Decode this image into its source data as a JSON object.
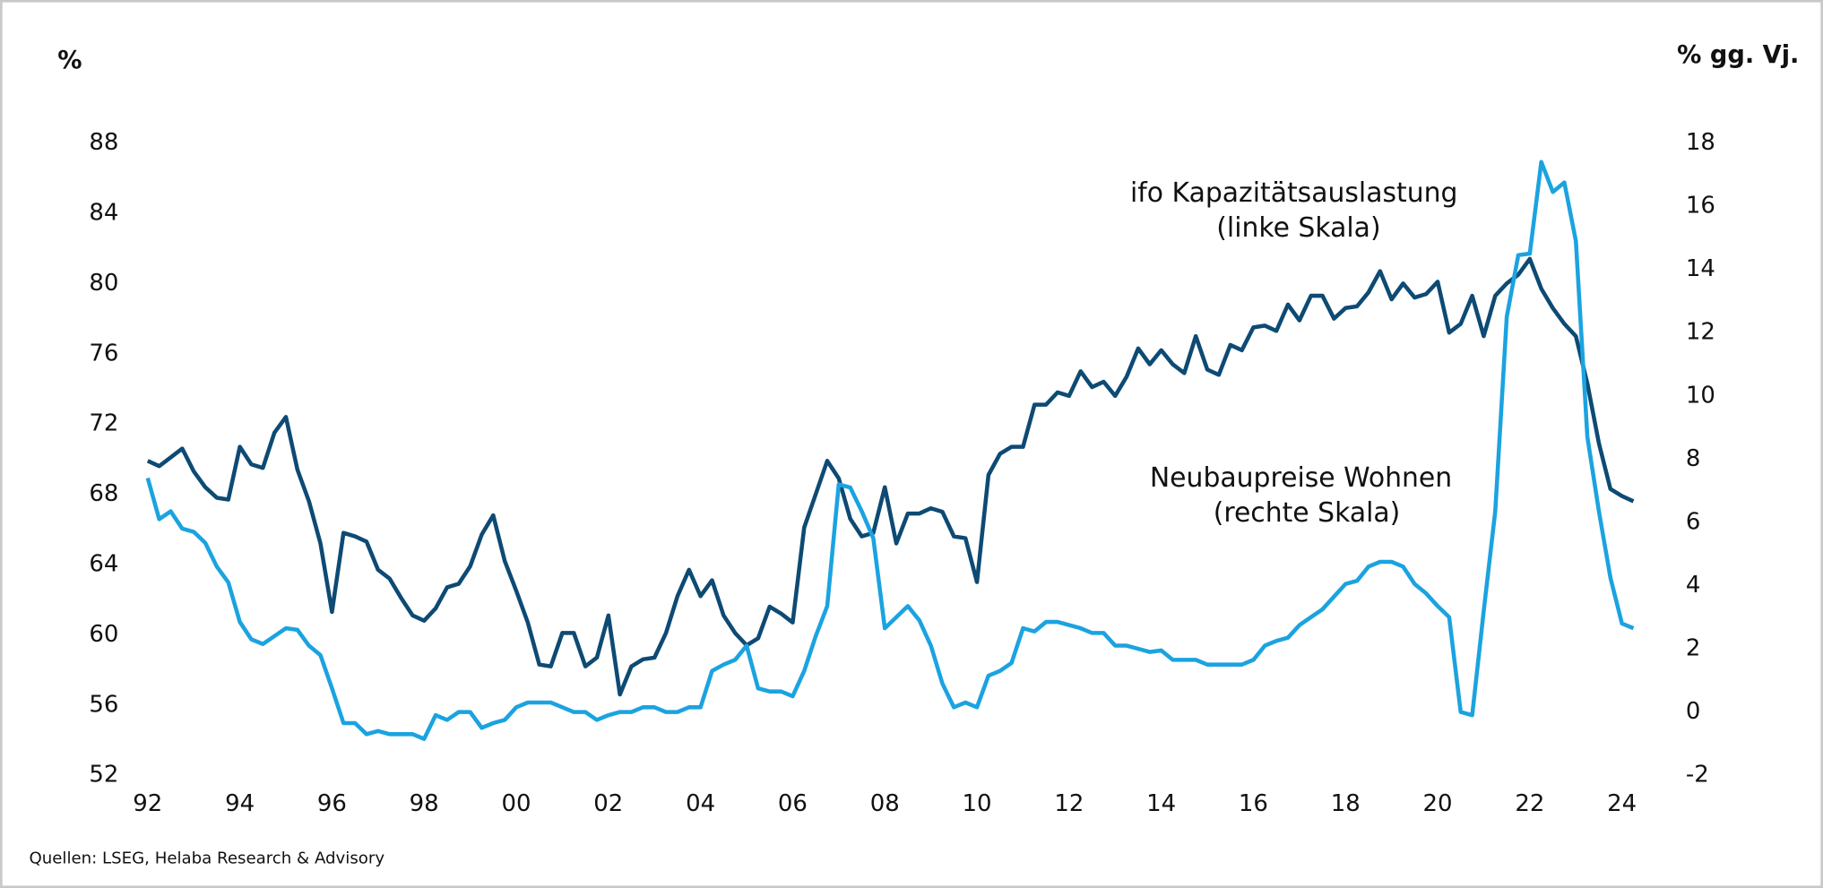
{
  "chart_data": {
    "type": "line",
    "y_label": "%",
    "y2_label": "% gg. Vj.",
    "source": "Quellen: LSEG, Helaba Research & Advisory",
    "x": [
      1992,
      1992.25,
      1992.5,
      1992.75,
      1993,
      1993.25,
      1993.5,
      1993.75,
      1994,
      1994.25,
      1994.5,
      1994.75,
      1995,
      1995.25,
      1995.5,
      1995.75,
      1996,
      1996.25,
      1996.5,
      1996.75,
      1997,
      1997.25,
      1997.5,
      1997.75,
      1998,
      1998.25,
      1998.5,
      1998.75,
      1999,
      1999.25,
      1999.5,
      1999.75,
      2000,
      2000.25,
      2000.5,
      2000.75,
      2001,
      2001.25,
      2001.5,
      2001.75,
      2002,
      2002.25,
      2002.5,
      2002.75,
      2003,
      2003.25,
      2003.5,
      2003.75,
      2004,
      2004.25,
      2004.5,
      2004.75,
      2005,
      2005.25,
      2005.5,
      2005.75,
      2006,
      2006.25,
      2006.5,
      2006.75,
      2007,
      2007.25,
      2007.5,
      2007.75,
      2008,
      2008.25,
      2008.5,
      2008.75,
      2009,
      2009.25,
      2009.5,
      2009.75,
      2010,
      2010.25,
      2010.5,
      2010.75,
      2011,
      2011.25,
      2011.5,
      2011.75,
      2012,
      2012.25,
      2012.5,
      2012.75,
      2013,
      2013.25,
      2013.5,
      2013.75,
      2014,
      2014.25,
      2014.5,
      2014.75,
      2015,
      2015.25,
      2015.5,
      2015.75,
      2016,
      2016.25,
      2016.5,
      2016.75,
      2017,
      2017.25,
      2017.5,
      2017.75,
      2018,
      2018.25,
      2018.5,
      2018.75,
      2019,
      2019.25,
      2019.5,
      2019.75,
      2020,
      2020.25,
      2020.5,
      2020.75,
      2021,
      2021.25,
      2021.5,
      2021.75,
      2022,
      2022.25,
      2022.5,
      2022.75,
      2023,
      2023.25,
      2023.5,
      2023.75,
      2024,
      2024.25
    ],
    "series": [
      {
        "name": "ifo Kapazitätsauslastung",
        "scale_label": "(linke Skala)",
        "color": "#0d4a74",
        "axis": "y",
        "values": [
          69.9,
          69.6,
          70.1,
          70.6,
          69.3,
          68.4,
          67.8,
          67.7,
          70.7,
          69.7,
          69.5,
          71.5,
          72.4,
          69.4,
          67.6,
          65.2,
          61.3,
          65.8,
          65.6,
          65.3,
          63.7,
          63.2,
          62.1,
          61.1,
          60.8,
          61.5,
          62.7,
          62.9,
          63.9,
          65.7,
          66.8,
          64.2,
          62.5,
          60.7,
          58.3,
          58.2,
          60.1,
          60.1,
          58.2,
          58.7,
          61.1,
          56.6,
          58.2,
          58.6,
          58.7,
          60.1,
          62.2,
          63.7,
          62.2,
          63.1,
          61.1,
          60.1,
          59.4,
          59.8,
          61.6,
          61.2,
          60.7,
          66.1,
          68.0,
          69.9,
          68.9,
          66.6,
          65.6,
          65.8,
          68.4,
          65.2,
          66.9,
          66.9,
          67.2,
          67.0,
          65.6,
          65.5,
          63.0,
          69.1,
          70.3,
          70.7,
          70.7,
          73.1,
          73.1,
          73.8,
          73.6,
          75.0,
          74.1,
          74.4,
          73.6,
          74.7,
          76.3,
          75.4,
          76.2,
          75.4,
          74.9,
          77.0,
          75.1,
          74.8,
          76.5,
          76.2,
          77.5,
          77.6,
          77.3,
          78.8,
          77.9,
          79.3,
          79.3,
          78.0,
          78.6,
          78.7,
          79.5,
          80.7,
          79.1,
          80.0,
          79.2,
          79.4,
          80.1,
          77.2,
          77.7,
          79.3,
          77.0,
          79.3,
          80.0,
          80.5,
          81.4,
          79.7,
          78.6,
          77.7,
          77.0,
          74.3,
          70.9,
          68.3,
          67.9,
          67.6
        ]
      },
      {
        "name": "Neubaupreise Wohnen",
        "scale_label": "(rechte Skala)",
        "color": "#1ba3e0",
        "axis": "y2",
        "values": [
          7.4,
          6.1,
          6.35,
          5.8,
          5.7,
          5.35,
          4.6,
          4.1,
          2.85,
          2.3,
          2.15,
          2.4,
          2.65,
          2.6,
          2.1,
          1.8,
          0.75,
          -0.35,
          -0.35,
          -0.7,
          -0.6,
          -0.7,
          -0.7,
          -0.7,
          -0.85,
          -0.1,
          -0.25,
          0.0,
          0.0,
          -0.5,
          -0.35,
          -0.25,
          0.15,
          0.3,
          0.3,
          0.3,
          0.15,
          0.0,
          0.0,
          -0.25,
          -0.1,
          0.0,
          0.0,
          0.15,
          0.15,
          0.0,
          0.0,
          0.15,
          0.15,
          1.3,
          1.5,
          1.65,
          2.1,
          0.75,
          0.65,
          0.65,
          0.5,
          1.3,
          2.4,
          3.35,
          7.2,
          7.1,
          6.35,
          5.5,
          2.65,
          3.0,
          3.35,
          2.9,
          2.1,
          0.9,
          0.15,
          0.3,
          0.15,
          1.15,
          1.3,
          1.55,
          2.65,
          2.55,
          2.85,
          2.85,
          2.75,
          2.65,
          2.5,
          2.5,
          2.1,
          2.1,
          2.0,
          1.9,
          1.95,
          1.65,
          1.65,
          1.65,
          1.5,
          1.5,
          1.5,
          1.5,
          1.65,
          2.1,
          2.25,
          2.35,
          2.75,
          3.0,
          3.25,
          3.65,
          4.05,
          4.15,
          4.6,
          4.75,
          4.75,
          4.6,
          4.05,
          3.75,
          3.35,
          3.0,
          0.0,
          -0.1,
          3.2,
          6.35,
          12.5,
          14.45,
          14.5,
          17.4,
          16.45,
          16.75,
          14.9,
          8.7,
          6.35,
          4.25,
          2.8,
          2.65
        ]
      }
    ],
    "xlim": [
      1992,
      2024.25
    ],
    "xticks": [
      {
        "value": 1992,
        "label": "92"
      },
      {
        "value": 1994,
        "label": "94"
      },
      {
        "value": 1996,
        "label": "96"
      },
      {
        "value": 1998,
        "label": "98"
      },
      {
        "value": 2000,
        "label": "00"
      },
      {
        "value": 2002,
        "label": "02"
      },
      {
        "value": 2004,
        "label": "04"
      },
      {
        "value": 2006,
        "label": "06"
      },
      {
        "value": 2008,
        "label": "08"
      },
      {
        "value": 2010,
        "label": "10"
      },
      {
        "value": 2012,
        "label": "12"
      },
      {
        "value": 2014,
        "label": "14"
      },
      {
        "value": 2016,
        "label": "16"
      },
      {
        "value": 2018,
        "label": "18"
      },
      {
        "value": 2020,
        "label": "20"
      },
      {
        "value": 2022,
        "label": "22"
      },
      {
        "value": 2024,
        "label": "24"
      }
    ],
    "ylim": [
      52,
      88
    ],
    "yticks": [
      52,
      56,
      60,
      64,
      68,
      72,
      76,
      80,
      84,
      88
    ],
    "y2lim": [
      -2,
      18
    ],
    "y2ticks": [
      -2,
      0,
      2,
      4,
      6,
      8,
      10,
      12,
      14,
      16,
      18
    ],
    "grid": false
  }
}
